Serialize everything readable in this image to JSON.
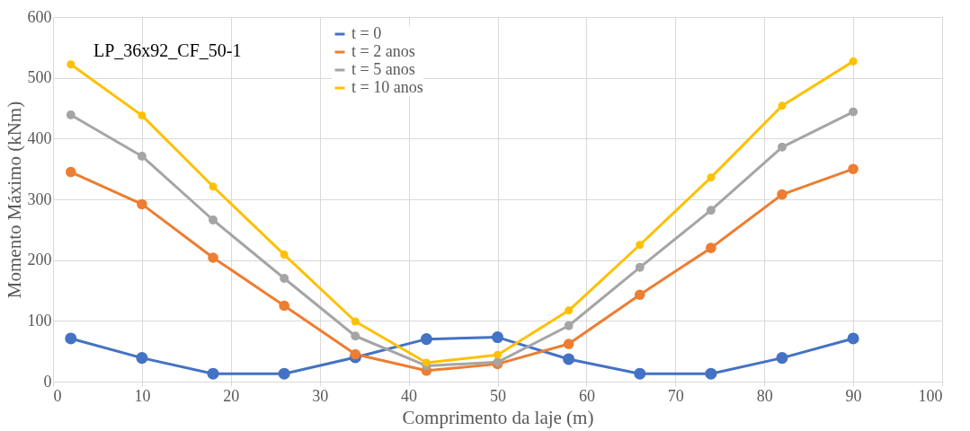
{
  "chart_data": {
    "type": "line",
    "xlabel": "Comprimento  da laje (m)",
    "ylabel": "Momento Máximo (kNm)",
    "annotations": [
      "LP_36x92_CF_50-1"
    ],
    "x": [
      2,
      10,
      18,
      26,
      34,
      42,
      50,
      58,
      66,
      74,
      82,
      90
    ],
    "series": [
      {
        "name": "t = 0",
        "color": "#4472c4",
        "values": [
          71,
          39,
          13,
          13,
          40,
          70,
          73,
          37,
          13,
          13,
          39,
          71
        ]
      },
      {
        "name": "t = 2 anos",
        "color": "#ed7d31",
        "values": [
          345,
          292,
          204,
          125,
          45,
          18,
          29,
          62,
          143,
          220,
          308,
          350
        ]
      },
      {
        "name": "t = 5 anos",
        "color": "#a5a5a5",
        "values": [
          439,
          371,
          266,
          170,
          75,
          26,
          32,
          92,
          188,
          282,
          386,
          444
        ]
      },
      {
        "name": "t = 10 anos",
        "color": "#ffc000",
        "values": [
          522,
          438,
          321,
          209,
          99,
          31,
          44,
          117,
          225,
          336,
          454,
          527
        ]
      }
    ],
    "xlim": [
      0,
      100
    ],
    "xticks": [
      0,
      10,
      20,
      30,
      40,
      50,
      60,
      70,
      80,
      90,
      100
    ],
    "ylim": [
      0,
      600
    ],
    "yticks": [
      0,
      100,
      200,
      300,
      400,
      500,
      600
    ],
    "grid": true,
    "legend": "top",
    "marker": "circle",
    "line_style": "solid"
  }
}
